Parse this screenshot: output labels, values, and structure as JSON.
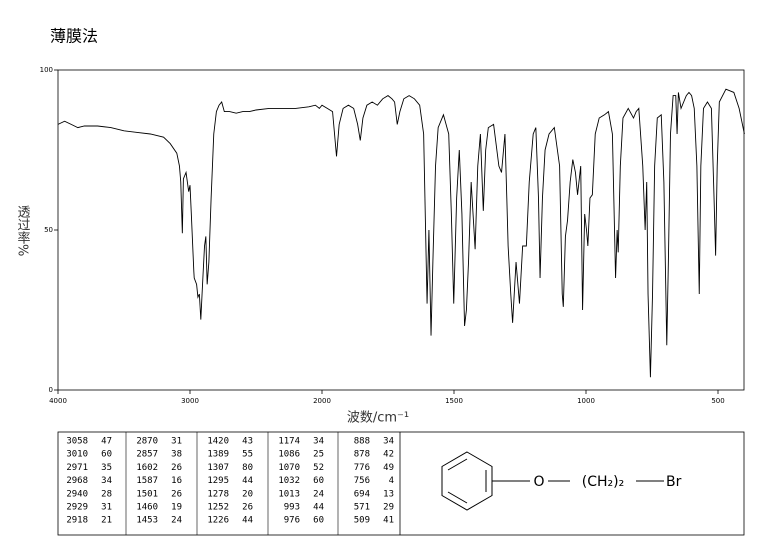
{
  "chart_data": {
    "type": "line",
    "title": "薄膜法",
    "x_label": "波数/cm⁻¹",
    "y_label": "透过率%",
    "color": "#000000",
    "xlim": [
      4000,
      400
    ],
    "ylim": [
      0,
      100
    ],
    "xticks": [
      4000,
      3000,
      2000,
      1500,
      1000,
      500
    ],
    "yticks": [
      0,
      50,
      100
    ],
    "x": [
      4000,
      3950,
      3900,
      3850,
      3800,
      3700,
      3600,
      3500,
      3400,
      3300,
      3200,
      3150,
      3100,
      3080,
      3070,
      3058,
      3050,
      3030,
      3010,
      3000,
      2990,
      2971,
      2968,
      2950,
      2940,
      2929,
      2918,
      2905,
      2890,
      2880,
      2870,
      2857,
      2840,
      2820,
      2800,
      2780,
      2760,
      2740,
      2700,
      2650,
      2600,
      2550,
      2500,
      2400,
      2300,
      2200,
      2100,
      2050,
      2020,
      2000,
      1980,
      1960,
      1945,
      1935,
      1920,
      1900,
      1880,
      1865,
      1855,
      1845,
      1830,
      1810,
      1790,
      1770,
      1750,
      1735,
      1725,
      1715,
      1705,
      1690,
      1670,
      1650,
      1630,
      1615,
      1602,
      1595,
      1587,
      1580,
      1570,
      1560,
      1540,
      1520,
      1510,
      1501,
      1490,
      1480,
      1470,
      1460,
      1453,
      1445,
      1435,
      1420,
      1410,
      1400,
      1389,
      1380,
      1370,
      1350,
      1330,
      1320,
      1307,
      1300,
      1295,
      1285,
      1278,
      1265,
      1252,
      1240,
      1226,
      1215,
      1200,
      1190,
      1180,
      1174,
      1165,
      1155,
      1140,
      1120,
      1100,
      1090,
      1086,
      1078,
      1070,
      1060,
      1050,
      1040,
      1032,
      1020,
      1013,
      1005,
      998,
      993,
      985,
      976,
      965,
      950,
      930,
      915,
      900,
      888,
      882,
      878,
      870,
      860,
      840,
      820,
      810,
      800,
      785,
      776,
      770,
      765,
      756,
      748,
      740,
      730,
      715,
      705,
      694,
      688,
      680,
      670,
      660,
      655,
      650,
      640,
      620,
      610,
      600,
      590,
      580,
      571,
      565,
      555,
      540,
      525,
      515,
      509,
      503,
      495,
      470,
      440,
      420,
      400
    ],
    "values": [
      83,
      84,
      83,
      82,
      82.5,
      82.5,
      82,
      81,
      80.5,
      80,
      79,
      77,
      74,
      70,
      65,
      49,
      66,
      68,
      62,
      64,
      55,
      37,
      35,
      33,
      29,
      30,
      22,
      33,
      45,
      48,
      33,
      40,
      60,
      80,
      87,
      89,
      90,
      87,
      87,
      86.5,
      87,
      87,
      87.5,
      88,
      88,
      88,
      88.5,
      89,
      88,
      89,
      88,
      87,
      73,
      83,
      88,
      89,
      88,
      83,
      78,
      85,
      89,
      90,
      89,
      91,
      92,
      91,
      90,
      83,
      87,
      91,
      92,
      91,
      89,
      80,
      27,
      50,
      17,
      40,
      70,
      82,
      86,
      80,
      55,
      27,
      60,
      75,
      55,
      20,
      25,
      40,
      65,
      44,
      70,
      80,
      56,
      75,
      82,
      83,
      70,
      68,
      80,
      60,
      45,
      30,
      21,
      40,
      27,
      45,
      45,
      65,
      80,
      82,
      60,
      35,
      60,
      75,
      80,
      82,
      70,
      30,
      26,
      48,
      53,
      65,
      72,
      68,
      61,
      70,
      25,
      55,
      50,
      45,
      60,
      61,
      80,
      85,
      86,
      87,
      80,
      35,
      50,
      43,
      70,
      85,
      88,
      85,
      87,
      88,
      70,
      50,
      65,
      30,
      4,
      30,
      70,
      85,
      86,
      65,
      14,
      40,
      80,
      92,
      92,
      80,
      93,
      88,
      92,
      93,
      92,
      88,
      70,
      30,
      70,
      88,
      90,
      88,
      60,
      42,
      70,
      90,
      94,
      93,
      88,
      80
    ]
  },
  "peak_table": {
    "columns": [
      [
        [
          3058,
          47
        ],
        [
          3010,
          60
        ],
        [
          2971,
          35
        ],
        [
          2968,
          34
        ],
        [
          2940,
          28
        ],
        [
          2929,
          31
        ],
        [
          2918,
          21
        ]
      ],
      [
        [
          2870,
          31
        ],
        [
          2857,
          38
        ],
        [
          1602,
          26
        ],
        [
          1587,
          16
        ],
        [
          1501,
          26
        ],
        [
          1460,
          19
        ],
        [
          1453,
          24
        ]
      ],
      [
        [
          1420,
          43
        ],
        [
          1389,
          55
        ],
        [
          1307,
          80
        ],
        [
          1295,
          44
        ],
        [
          1278,
          20
        ],
        [
          1252,
          26
        ],
        [
          1226,
          44
        ]
      ],
      [
        [
          1174,
          34
        ],
        [
          1086,
          25
        ],
        [
          1070,
          52
        ],
        [
          1032,
          60
        ],
        [
          1013,
          24
        ],
        [
          993,
          44
        ],
        [
          976,
          60
        ]
      ],
      [
        [
          888,
          34
        ],
        [
          878,
          42
        ],
        [
          776,
          49
        ],
        [
          756,
          4
        ],
        [
          694,
          13
        ],
        [
          571,
          29
        ],
        [
          509,
          41
        ]
      ]
    ]
  },
  "structure": {
    "link_atom": "O",
    "chain": "(CH₂)₂",
    "end_atom": "Br"
  }
}
